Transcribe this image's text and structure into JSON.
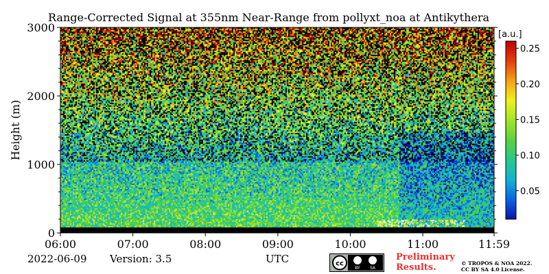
{
  "chart_data": {
    "type": "heatmap",
    "title": "Range-Corrected Signal at 355nm Near-Range from pollyxt_noa at Antikythera",
    "ylabel": "Height (m)",
    "xlabel": "UTC",
    "ylim": [
      0,
      3000
    ],
    "y_ticks": [
      "0",
      "1000",
      "2000",
      "3000"
    ],
    "x_ticks": [
      "06:00",
      "07:00",
      "08:00",
      "09:00",
      "10:00",
      "11:00",
      "11:59"
    ],
    "x_tick_hours": [
      6,
      7,
      8,
      9,
      10,
      11,
      11.983
    ],
    "colorbar": {
      "unit": "[a.u.]",
      "range": [
        0.01,
        0.26
      ],
      "ticks": [
        "0.05",
        "0.10",
        "0.15",
        "0.20",
        "0.25"
      ],
      "tick_values": [
        0.05,
        0.1,
        0.15,
        0.2,
        0.25
      ],
      "colormap": [
        "#0a14a8",
        "#0a64e6",
        "#14b4d2",
        "#28c88c",
        "#5ad23c",
        "#a0e628",
        "#f0f01e",
        "#f5a014",
        "#e63c0a",
        "#be0000"
      ]
    },
    "grid": false
  },
  "footer": {
    "date": "2022-06-09",
    "version": "Version: 3.5",
    "preliminary_line1": "Preliminary",
    "preliminary_line2": "Results.",
    "copyright_line1": "© TROPOS & NOA 2022.",
    "copyright_line2": "CC BY SA 4.0 License.",
    "license_badge": [
      "cc",
      "BY",
      "SA"
    ]
  }
}
